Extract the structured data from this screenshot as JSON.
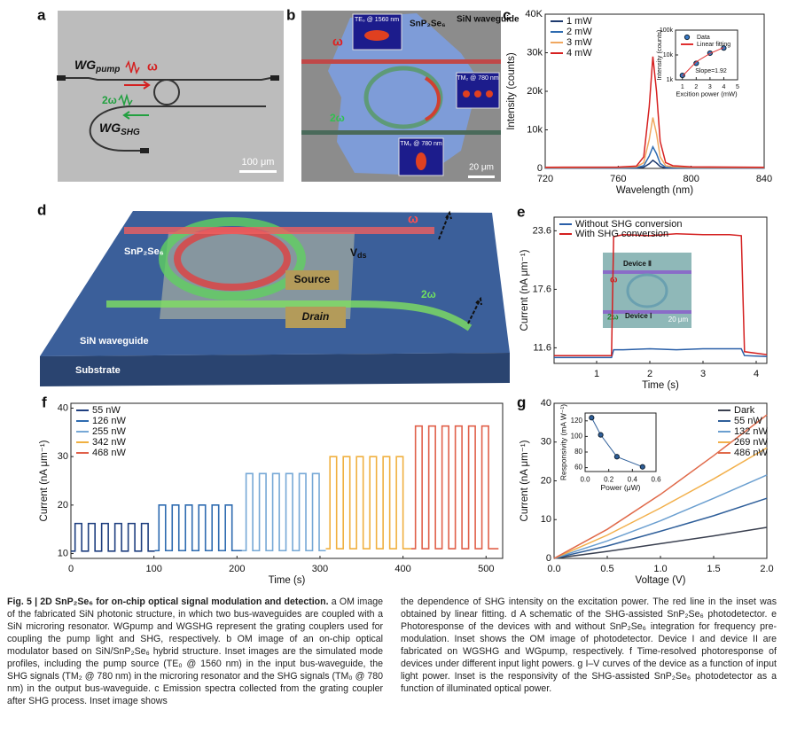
{
  "figure": {
    "a": {
      "panel": "a",
      "wg1": "WG",
      "wg1_sub": "pump",
      "omega": "ω",
      "two_omega": "2ω",
      "wg2": "WG",
      "wg2_sub": "SHG",
      "scale": "100 μm"
    },
    "b": {
      "panel": "b",
      "te0": "TE₀ @ 1560 nm",
      "material": "SnP₂Se₆",
      "wg": "SiN waveguide",
      "omega": "ω",
      "tm2": "TM₂ @ 780 nm",
      "two_omega": "2ω",
      "tm0": "TM₀ @ 780 nm",
      "scale": "20 μm"
    },
    "d": {
      "panel": "d",
      "material": "SnP₂Se₆",
      "wg": "SiN waveguide",
      "substrate": "Substrate",
      "source": "Source",
      "drain": "Drain",
      "v": "V",
      "v_sub": "ds",
      "omega": "ω",
      "two_omega": "2ω"
    },
    "e_inset": {
      "device2": "Device Ⅱ",
      "omega": "ω",
      "two_omega": "2ω",
      "device1": "Device Ⅰ",
      "scale": "20 μm"
    }
  },
  "chart_data": [
    {
      "type": "line",
      "panel": "c",
      "xlabel": "Wavelength (nm)",
      "ylabel": "Intensity (counts)",
      "x": [
        720,
        760,
        770,
        774,
        777,
        779,
        781,
        783,
        786,
        790,
        800,
        840
      ],
      "series": [
        {
          "name": "1 mW",
          "color": "#1e3a6e",
          "values": [
            50,
            60,
            100,
            300,
            1200,
            2100,
            1400,
            500,
            120,
            80,
            60,
            50
          ]
        },
        {
          "name": "2 mW",
          "color": "#2e6bb0",
          "values": [
            100,
            120,
            200,
            700,
            3200,
            5600,
            3800,
            1300,
            300,
            180,
            120,
            100
          ]
        },
        {
          "name": "3 mW",
          "color": "#f0a860",
          "values": [
            200,
            250,
            400,
            1500,
            7500,
            13200,
            9000,
            3000,
            700,
            400,
            250,
            200
          ]
        },
        {
          "name": "4 mW",
          "color": "#d62020",
          "values": [
            300,
            350,
            600,
            3000,
            16000,
            29000,
            20000,
            7000,
            1500,
            700,
            400,
            300
          ]
        }
      ],
      "xlim": [
        720,
        840
      ],
      "xticks": [
        720,
        760,
        800,
        840
      ],
      "ylim": [
        0,
        40000
      ],
      "yticks": [
        0,
        {
          "value": 10000,
          "label": "10k"
        },
        {
          "value": 20000,
          "label": "20k"
        },
        {
          "value": 30000,
          "label": "30k"
        },
        {
          "value": 40000,
          "label": "40K"
        }
      ],
      "legend": "upper-left",
      "inset": {
        "type": "scatter",
        "xlabel": "Excition power (mW)",
        "ylabel": "Intensity (counts)",
        "annotation": "Slope=1.92",
        "x": [
          1,
          2,
          3,
          4
        ],
        "series": [
          {
            "name": "Data",
            "color": "#3a7bc8",
            "values": [
              1500,
              4600,
              11800,
              19000
            ],
            "marker": true,
            "line": false
          },
          {
            "name": "Linear fitting",
            "color": "#e03030",
            "values": [
              1400,
              5300,
              11500,
              20000
            ]
          }
        ],
        "xlim": [
          0.5,
          5
        ],
        "xticks": [
          1,
          2,
          3,
          4,
          5
        ],
        "ylim": [
          1000,
          100000
        ],
        "ylog": true,
        "yticks": [
          {
            "value": 1000,
            "label": "1k"
          },
          {
            "value": 10000,
            "label": "10k"
          },
          {
            "value": 100000,
            "label": "100k"
          }
        ],
        "legend": "upper-left"
      }
    },
    {
      "type": "line",
      "panel": "e",
      "xlabel": "Time (s)",
      "ylabel": "Current (nA μm⁻¹)",
      "x": [
        0.2,
        1.28,
        1.32,
        1.5,
        2,
        2.5,
        3,
        3.5,
        3.72,
        3.78,
        4.2
      ],
      "series": [
        {
          "name": "Without SHG conversion",
          "color": "#2a5fa8",
          "values": [
            10.6,
            10.6,
            11.4,
            11.4,
            11.5,
            11.4,
            11.5,
            11.5,
            11.5,
            10.8,
            10.7
          ]
        },
        {
          "name": "With  SHG conversion",
          "color": "#d42020",
          "values": [
            10.8,
            10.8,
            23.0,
            23.2,
            23.1,
            23.3,
            23.2,
            23.2,
            23.1,
            11.2,
            10.9
          ]
        }
      ],
      "xlim": [
        0.2,
        4.2
      ],
      "xticks": [
        1,
        2,
        3,
        4
      ],
      "ylim": [
        10,
        25
      ],
      "yticks": [
        11.6,
        17.6,
        23.6
      ],
      "legend": "upper-left"
    },
    {
      "type": "line",
      "panel": "f",
      "xlabel": "Time (s)",
      "ylabel": "Current (nA μm⁻¹)",
      "step": true,
      "series": [
        {
          "name": "55 nW",
          "color": "#1f3f7f",
          "x": [
            0,
            5,
            13,
            21,
            29,
            37,
            45,
            53,
            61,
            69,
            77,
            85,
            93,
            101
          ],
          "values": [
            10.5,
            16.2,
            10.5,
            16.2,
            10.5,
            16.2,
            10.5,
            16.2,
            10.5,
            16.2,
            10.5,
            16.2,
            10.5,
            10.5
          ]
        },
        {
          "name": "126 nW",
          "color": "#2e6bb0",
          "x": [
            101,
            106,
            114,
            122,
            130,
            138,
            146,
            154,
            162,
            170,
            178,
            186,
            194,
            206
          ],
          "values": [
            10.6,
            20,
            10.6,
            20,
            10.6,
            20,
            10.6,
            20,
            10.6,
            20,
            10.6,
            20,
            10.6,
            10.6
          ]
        },
        {
          "name": "255 nW",
          "color": "#76a8d6",
          "x": [
            206,
            211,
            219,
            227,
            235,
            243,
            251,
            259,
            267,
            275,
            283,
            291,
            299,
            307
          ],
          "values": [
            10.6,
            26.5,
            10.6,
            26.5,
            10.6,
            26.5,
            10.6,
            26.5,
            10.6,
            26.5,
            10.6,
            26.5,
            10.6,
            10.6
          ]
        },
        {
          "name": "342 nW",
          "color": "#f0b040",
          "x": [
            307,
            312,
            320,
            328,
            336,
            344,
            352,
            360,
            368,
            376,
            384,
            392,
            400,
            410
          ],
          "values": [
            11,
            30,
            11,
            30,
            11,
            30,
            11,
            30,
            11,
            30,
            11,
            30,
            11,
            11
          ]
        },
        {
          "name": "468 nW",
          "color": "#e0604a",
          "x": [
            410,
            415,
            423,
            431,
            439,
            447,
            455,
            463,
            471,
            479,
            487,
            495,
            503,
            515
          ],
          "values": [
            11,
            36.3,
            11,
            36.3,
            11,
            36.3,
            11,
            36.3,
            11,
            36.3,
            11,
            36.3,
            11,
            11
          ]
        }
      ],
      "xlim": [
        0,
        520
      ],
      "xticks": [
        0,
        100,
        200,
        300,
        400,
        500
      ],
      "ylim": [
        9,
        41
      ],
      "yticks": [
        10,
        20,
        30,
        40
      ],
      "legend": "upper-left"
    },
    {
      "type": "line",
      "panel": "g",
      "xlabel": "Voltage (V)",
      "ylabel": "Current (nA μm⁻¹)",
      "x": [
        0,
        0.5,
        1,
        1.5,
        2
      ],
      "series": [
        {
          "name": "Dark",
          "color": "#3a4050",
          "values": [
            0,
            1.8,
            3.8,
            5.8,
            8
          ]
        },
        {
          "name": "55 nW",
          "color": "#2f5f9a",
          "values": [
            0,
            3.2,
            7,
            11,
            15.5
          ]
        },
        {
          "name": "132 nW",
          "color": "#6b9fd0",
          "values": [
            0,
            4.5,
            9.7,
            15.5,
            21.5
          ]
        },
        {
          "name": "269 nW",
          "color": "#f2b04c",
          "values": [
            0,
            6,
            13,
            20.5,
            28.5
          ]
        },
        {
          "name": "486 nW",
          "color": "#e06a4a",
          "values": [
            0,
            7.5,
            16.5,
            26.5,
            37
          ]
        }
      ],
      "xlim": [
        0,
        2
      ],
      "xticks": [
        {
          "value": 0,
          "label": "0.0"
        },
        0.5,
        {
          "value": 1,
          "label": "1.0"
        },
        1.5,
        {
          "value": 2,
          "label": "2.0"
        }
      ],
      "ylim": [
        0,
        40
      ],
      "yticks": [
        0,
        10,
        20,
        30,
        40
      ],
      "legend": "upper-right",
      "inset": {
        "type": "line",
        "xlabel": "Power (μW)",
        "ylabel": "Responsivity (mA W⁻¹)",
        "x": [
          0.055,
          0.132,
          0.269,
          0.486
        ],
        "series": [
          {
            "color": "#2f5f9a",
            "values": [
              124,
              102,
              74,
              61
            ],
            "marker": true
          }
        ],
        "xlim": [
          0,
          0.6
        ],
        "xticks": [
          {
            "value": 0,
            "label": "0.0"
          },
          0.2,
          0.4,
          0.6
        ],
        "ylim": [
          55,
          130
        ],
        "yticks": [
          60,
          80,
          100,
          120
        ]
      }
    }
  ],
  "caption": {
    "heading": "Fig. 5 | 2D SnP₂Se₆ for on-chip optical signal modulation and detection.",
    "left": "a OM image of the fabricated SiN photonic structure, in which two bus-waveguides are coupled with a SiN microring resonator. WGpump and WGSHG represent the grating couplers used for coupling the pump light and SHG, respectively. b OM image of an on-chip optical modulator based on SiN/SnP₂Se₆ hybrid structure. Inset images are the simulated mode profiles, including the pump source (TE₀ @ 1560 nm) in the input bus-waveguide, the SHG signals (TM₂ @ 780 nm) in the microring resonator and the SHG signals (TM₀ @ 780 nm) in the output bus-waveguide. c Emission spectra collected from the grating coupler after SHG process. Inset image shows",
    "right": "the dependence of SHG intensity on the excitation power. The red line in the inset was obtained by linear fitting. d A schematic of the SHG-assisted SnP₂Se₆ photodetector. e Photoresponse of the devices with and without SnP₂Se₆ integration for frequency pre-modulation. Inset shows the OM image of photodetector. Device I and device II are fabricated on WGSHG and WGpump, respectively. f Time-resolved photoresponse of devices under different input light powers. g I–V curves of the device as a function of input light power. Inset is the responsivity of the SHG-assisted SnP₂Se₆ photodetector as a function of illuminated optical power."
  }
}
